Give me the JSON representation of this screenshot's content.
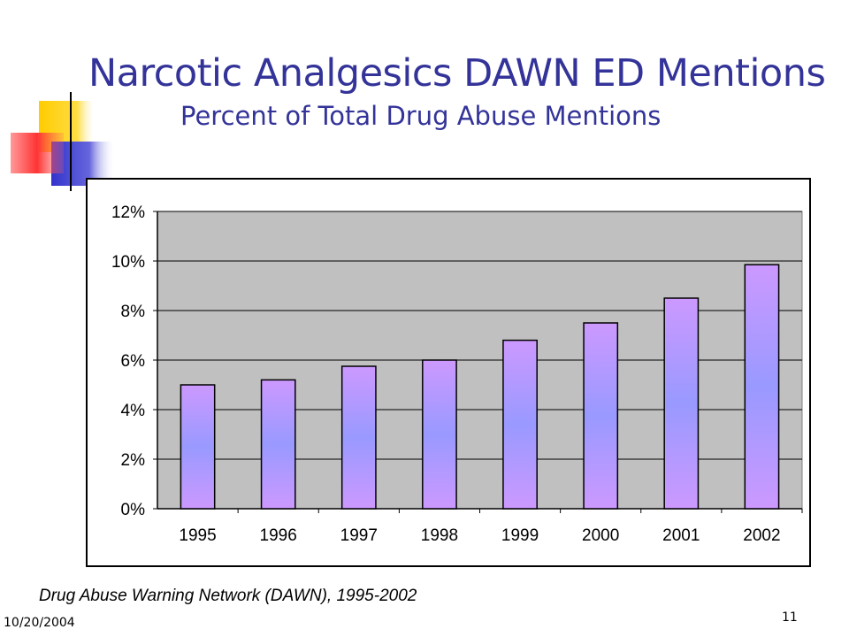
{
  "slide": {
    "title": "Narcotic Analgesics DAWN ED Mentions",
    "subtitle": "Percent of Total Drug Abuse Mentions",
    "source": "Drug Abuse Warning Network (DAWN), 1995-2002",
    "date": "10/20/2004",
    "page_number": "11"
  },
  "colors": {
    "title": "#333399",
    "plot_background": "#c0c0c0",
    "bar_top": "#cc99ff",
    "bar_middle": "#9999ff",
    "bar_bottom": "#cc99ff",
    "decor_yellow": "#ffcc00",
    "decor_red": "#ff3333",
    "decor_blue": "#3333cc"
  },
  "chart_data": {
    "type": "bar",
    "title": "",
    "xlabel": "",
    "ylabel": "",
    "categories": [
      "1995",
      "1996",
      "1997",
      "1998",
      "1999",
      "2000",
      "2001",
      "2002"
    ],
    "values": [
      5.0,
      5.2,
      5.75,
      6.0,
      6.8,
      7.5,
      8.5,
      9.85
    ],
    "ylim": [
      0,
      12
    ],
    "y_ticks": [
      0,
      2,
      4,
      6,
      8,
      10,
      12
    ],
    "y_tick_labels": [
      "0%",
      "2%",
      "4%",
      "6%",
      "8%",
      "10%",
      "12%"
    ],
    "grid": true,
    "legend": "none"
  }
}
